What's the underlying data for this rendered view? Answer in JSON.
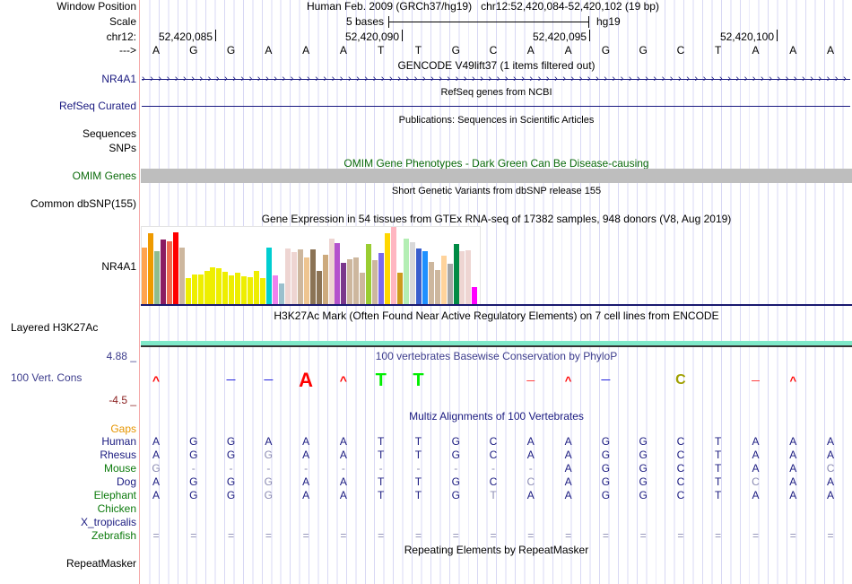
{
  "header": {
    "assembly": "Human Feb. 2009 (GRCh37/hg19)",
    "position": "chr12:52,420,084-52,420,102 (19 bp)"
  },
  "labels": {
    "window_position": "Window Position",
    "scale": "Scale",
    "chrom": "chr12:",
    "strand": "--->"
  },
  "scale": {
    "text": "5 bases",
    "db": "hg19"
  },
  "ticks": [
    "52,420,085",
    "52,420,090",
    "52,420,095",
    "52,420,100"
  ],
  "sequence": [
    "A",
    "G",
    "G",
    "A",
    "A",
    "A",
    "T",
    "T",
    "G",
    "C",
    "A",
    "A",
    "G",
    "G",
    "C",
    "T",
    "A",
    "A",
    "A"
  ],
  "tracks": {
    "gencode_title": "GENCODE V49lift37 (1 items filtered out)",
    "gencode_label": "NR4A1",
    "refseq_title": "RefSeq genes from NCBI",
    "refseq_label": "RefSeq Curated",
    "pubs_title": "Publications: Sequences in Scientific Articles",
    "sequences_label": "Sequences",
    "snps_label": "SNPs",
    "omim_title": "OMIM Gene Phenotypes - Dark Green Can Be Disease-causing",
    "omim_label": "OMIM Genes",
    "dbsnp_title": "Short Genetic Variants from dbSNP release 155",
    "dbsnp_label": "Common dbSNP(155)",
    "gtex_title": "Gene Expression in 54 tissues from GTEx RNA-seq of 17382 samples, 948 donors (V8, Aug 2019)",
    "gtex_label": "NR4A1",
    "h3k27ac_title": "H3K27Ac Mark (Often Found Near Active Regulatory Elements) on 7 cell lines from ENCODE",
    "h3k27ac_label": "Layered H3K27Ac",
    "phylop_title": "100 vertebrates Basewise Conservation by PhyloP",
    "phylop_label": "100 Vert. Cons",
    "phylop_max": "4.88 _",
    "phylop_min": "-4.5 _",
    "multiz_title": "Multiz Alignments of 100 Vertebrates",
    "gaps_label": "Gaps",
    "rmsk_title": "Repeating Elements by RepeatMasker",
    "rmsk_label": "RepeatMasker"
  },
  "gtex": {
    "values": [
      192,
      239,
      179,
      218,
      212,
      242,
      192,
      89,
      101,
      101,
      113,
      125,
      122,
      110,
      98,
      107,
      95,
      92,
      113,
      89,
      192,
      98,
      71,
      188,
      176,
      185,
      158,
      185,
      113,
      167,
      221,
      206,
      140,
      152,
      158,
      107,
      203,
      149,
      173,
      239,
      260,
      107,
      221,
      209,
      188,
      179,
      143,
      116,
      164,
      137,
      203,
      179,
      182,
      59
    ],
    "colors": [
      "#FFA54F",
      "#EE9A00",
      "#8FBC8F",
      "#8B1C62",
      "#EE6A50",
      "#FF0000",
      "#CDB79E",
      "#EEEE00",
      "#EEEE00",
      "#EEEE00",
      "#EEEE00",
      "#EEEE00",
      "#EEEE00",
      "#EEEE00",
      "#EEEE00",
      "#EEEE00",
      "#EEEE00",
      "#EEEE00",
      "#EEEE00",
      "#EEEE00",
      "#00CED1",
      "#EE82EE",
      "#9AC0CD",
      "#EED5D2",
      "#EED5D2",
      "#CDB79E",
      "#EEC591",
      "#8B7355",
      "#8B7355",
      "#CDAA7D",
      "#EED5D2",
      "#B452CD",
      "#7A378B",
      "#CDB79E",
      "#CDB79E",
      "#CDB79E",
      "#9ACD32",
      "#CDB79E",
      "#7B68EE",
      "#FFD700",
      "#FFB6C1",
      "#CD9B1D",
      "#B4EEB4",
      "#D9D9D9",
      "#3A5FCD",
      "#1E90FF",
      "#CDB79E",
      "#CDB79E",
      "#FFD39B",
      "#A6A6A6",
      "#008B45",
      "#EED5D2",
      "#EED5D2",
      "#FF00FF"
    ]
  },
  "phylop": [
    {
      "i": 0,
      "ch": "^",
      "color": "#ff0000",
      "size": 14
    },
    {
      "i": 2,
      "ch": "—",
      "color": "#2222dd",
      "size": 10
    },
    {
      "i": 3,
      "ch": "—",
      "color": "#2222dd",
      "size": 10
    },
    {
      "i": 4,
      "ch": "A",
      "color": "#ff0000",
      "size": 22
    },
    {
      "i": 5,
      "ch": "^",
      "color": "#ff0000",
      "size": 14
    },
    {
      "i": 6,
      "ch": "T",
      "color": "#00ee00",
      "size": 20
    },
    {
      "i": 7,
      "ch": "T",
      "color": "#00ee00",
      "size": 20
    },
    {
      "i": 10,
      "ch": "—",
      "color": "#ff3333",
      "size": 9
    },
    {
      "i": 11,
      "ch": "^",
      "color": "#ff0000",
      "size": 13
    },
    {
      "i": 12,
      "ch": "—",
      "color": "#2222dd",
      "size": 10
    },
    {
      "i": 14,
      "ch": "C",
      "color": "#a0a000",
      "size": 16
    },
    {
      "i": 16,
      "ch": "—",
      "color": "#ff3333",
      "size": 9
    },
    {
      "i": 17,
      "ch": "^",
      "color": "#ff0000",
      "size": 13
    }
  ],
  "species": [
    {
      "name": "Human",
      "color": "#1a1a80",
      "seq": "AGGAAATTGCAAGGCTAAA",
      "gray": ""
    },
    {
      "name": "Rhesus",
      "color": "#1a1a80",
      "seq": "AGGGAATTGCAAGGCTAAA",
      "gray": "3"
    },
    {
      "name": "Mouse",
      "color": "#0b7a0b",
      "seq": "G----------AGGCTAAC",
      "gray": "0,1,2,3,4,5,6,7,8,9,10,18"
    },
    {
      "name": "Dog",
      "color": "#1a1a80",
      "seq": "AGGGAATTGCCAGGCTCAA",
      "gray": "3,10,16"
    },
    {
      "name": "Elephant",
      "color": "#0b7a0b",
      "seq": "AGGGAATTGTAAGGCTAAA",
      "gray": "3,9"
    },
    {
      "name": "Chicken",
      "color": "#0b7a0b",
      "seq": "",
      "gray": ""
    },
    {
      "name": "X_tropicalis",
      "color": "#1a1a80",
      "seq": "",
      "gray": ""
    },
    {
      "name": "Zebrafish",
      "color": "#0b7a0b",
      "seq": "===================",
      "gray": "all"
    }
  ]
}
